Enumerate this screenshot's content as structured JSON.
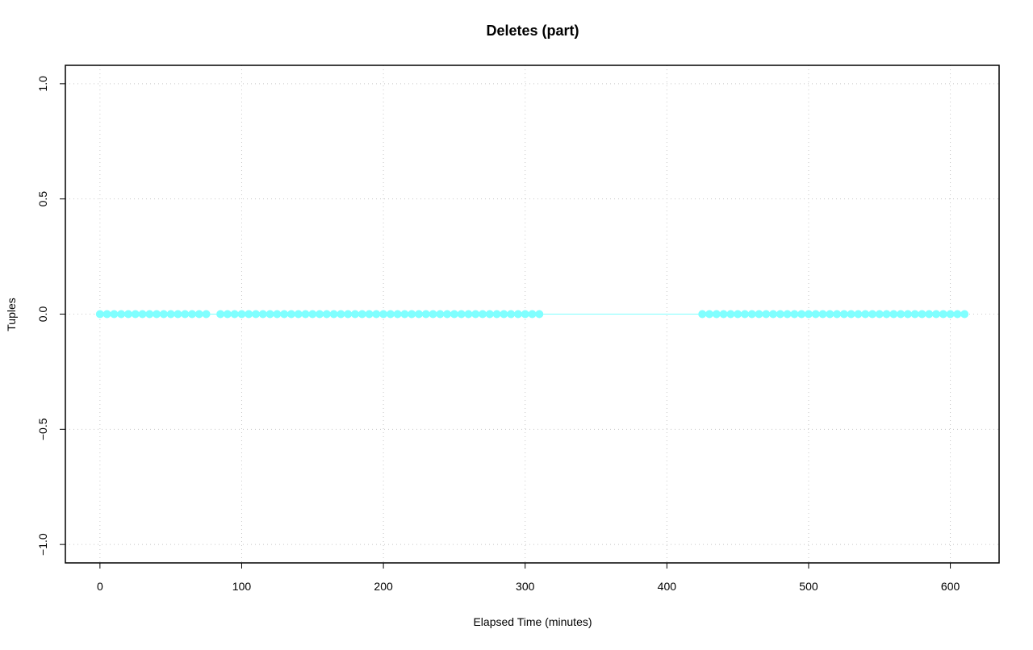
{
  "chart_data": {
    "type": "scatter",
    "title": "Deletes (part)",
    "x_label": "Elapsed Time (minutes)",
    "y_label": "Tuples",
    "xlim": [
      -24.4,
      634.4
    ],
    "ylim": [
      -1.08,
      1.08
    ],
    "xticks": [
      0,
      100,
      200,
      300,
      400,
      500,
      600
    ],
    "yticks": [
      {
        "value": -1,
        "label": "−1.0"
      },
      {
        "value": -0.5,
        "label": "−0.5"
      },
      {
        "value": 0,
        "label": "0.0"
      },
      0.5,
      {
        "value": 1,
        "label": "1.0"
      }
    ],
    "grid": true,
    "series": [
      {
        "color": "#80ffff",
        "x": [
          0,
          5,
          10,
          15,
          20,
          25,
          30,
          35,
          40,
          45,
          50,
          55,
          60,
          65,
          70,
          75,
          85,
          90,
          95,
          100,
          105,
          110,
          115,
          120,
          125,
          130,
          135,
          140,
          145,
          150,
          155,
          160,
          165,
          170,
          175,
          180,
          185,
          190,
          195,
          200,
          205,
          210,
          215,
          220,
          225,
          230,
          235,
          240,
          245,
          250,
          255,
          260,
          265,
          270,
          275,
          280,
          285,
          290,
          295,
          300,
          305,
          310,
          425,
          430,
          435,
          440,
          445,
          450,
          455,
          460,
          465,
          470,
          475,
          480,
          485,
          490,
          495,
          500,
          505,
          510,
          515,
          520,
          525,
          530,
          535,
          540,
          545,
          550,
          555,
          560,
          565,
          570,
          575,
          580,
          585,
          590,
          595,
          600,
          605,
          610
        ],
        "values": [
          0,
          0,
          0,
          0,
          0,
          0,
          0,
          0,
          0,
          0,
          0,
          0,
          0,
          0,
          0,
          0,
          0,
          0,
          0,
          0,
          0,
          0,
          0,
          0,
          0,
          0,
          0,
          0,
          0,
          0,
          0,
          0,
          0,
          0,
          0,
          0,
          0,
          0,
          0,
          0,
          0,
          0,
          0,
          0,
          0,
          0,
          0,
          0,
          0,
          0,
          0,
          0,
          0,
          0,
          0,
          0,
          0,
          0,
          0,
          0,
          0,
          0,
          0,
          0,
          0,
          0,
          0,
          0,
          0,
          0,
          0,
          0,
          0,
          0,
          0,
          0,
          0,
          0,
          0,
          0,
          0,
          0,
          0,
          0,
          0,
          0,
          0,
          0,
          0,
          0,
          0,
          0,
          0,
          0,
          0,
          0,
          0,
          0,
          0,
          0
        ]
      }
    ]
  }
}
